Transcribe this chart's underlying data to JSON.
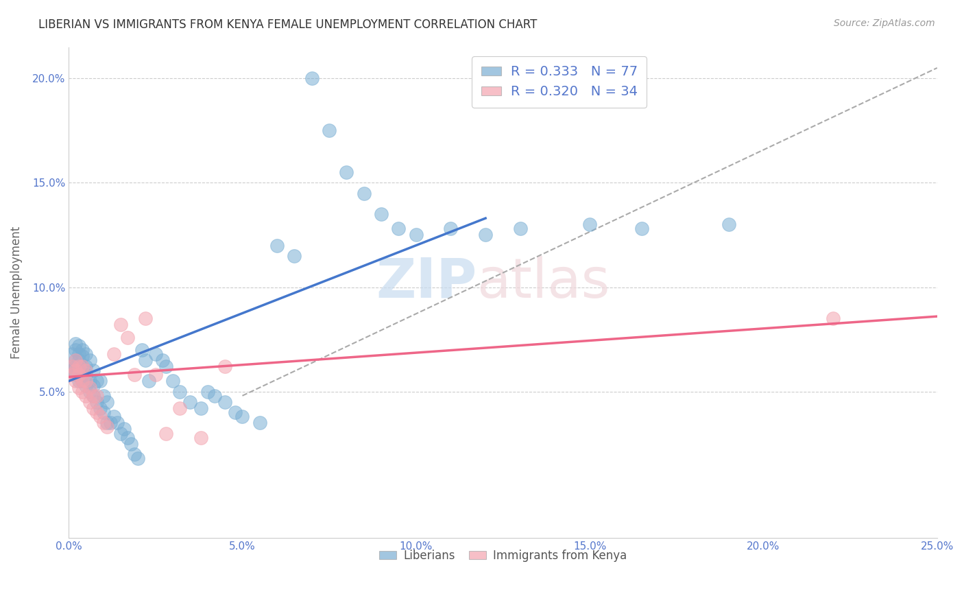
{
  "title": "LIBERIAN VS IMMIGRANTS FROM KENYA FEMALE UNEMPLOYMENT CORRELATION CHART",
  "source": "Source: ZipAtlas.com",
  "ylabel": "Female Unemployment",
  "xlim": [
    0.0,
    0.25
  ],
  "ylim": [
    -0.02,
    0.215
  ],
  "x_ticks": [
    0.0,
    0.05,
    0.1,
    0.15,
    0.2,
    0.25
  ],
  "x_tick_labels": [
    "0.0%",
    "5.0%",
    "10.0%",
    "15.0%",
    "20.0%",
    "25.0%"
  ],
  "y_ticks": [
    0.05,
    0.1,
    0.15,
    0.2
  ],
  "y_tick_labels": [
    "5.0%",
    "10.0%",
    "15.0%",
    "20.0%"
  ],
  "legend_R1": "R = 0.333",
  "legend_N1": "N = 77",
  "legend_R2": "R = 0.320",
  "legend_N2": "N = 34",
  "blue_color": "#7BAFD4",
  "pink_color": "#F4A4B0",
  "blue_line_color": "#4477CC",
  "pink_line_color": "#EE6688",
  "tick_color": "#5577CC",
  "blue_line_x": [
    0.0,
    0.12
  ],
  "blue_line_y": [
    0.055,
    0.133
  ],
  "pink_line_x": [
    0.0,
    0.25
  ],
  "pink_line_y": [
    0.057,
    0.086
  ],
  "gray_line_x": [
    0.05,
    0.25
  ],
  "gray_line_y": [
    0.048,
    0.205
  ],
  "blue_scatter_x": [
    0.001,
    0.001,
    0.001,
    0.002,
    0.002,
    0.002,
    0.002,
    0.002,
    0.003,
    0.003,
    0.003,
    0.003,
    0.003,
    0.003,
    0.004,
    0.004,
    0.004,
    0.004,
    0.004,
    0.005,
    0.005,
    0.005,
    0.005,
    0.006,
    0.006,
    0.006,
    0.007,
    0.007,
    0.007,
    0.008,
    0.008,
    0.009,
    0.009,
    0.01,
    0.01,
    0.011,
    0.011,
    0.012,
    0.013,
    0.014,
    0.015,
    0.016,
    0.017,
    0.018,
    0.019,
    0.02,
    0.021,
    0.022,
    0.023,
    0.025,
    0.027,
    0.028,
    0.03,
    0.032,
    0.035,
    0.038,
    0.04,
    0.042,
    0.045,
    0.048,
    0.05,
    0.055,
    0.06,
    0.065,
    0.07,
    0.075,
    0.08,
    0.085,
    0.09,
    0.095,
    0.1,
    0.11,
    0.12,
    0.13,
    0.15,
    0.165,
    0.19
  ],
  "blue_scatter_y": [
    0.06,
    0.062,
    0.068,
    0.058,
    0.062,
    0.065,
    0.07,
    0.073,
    0.055,
    0.06,
    0.062,
    0.065,
    0.068,
    0.072,
    0.055,
    0.058,
    0.062,
    0.067,
    0.07,
    0.053,
    0.058,
    0.062,
    0.068,
    0.05,
    0.055,
    0.065,
    0.048,
    0.053,
    0.06,
    0.045,
    0.055,
    0.042,
    0.055,
    0.04,
    0.048,
    0.035,
    0.045,
    0.035,
    0.038,
    0.035,
    0.03,
    0.032,
    0.028,
    0.025,
    0.02,
    0.018,
    0.07,
    0.065,
    0.055,
    0.068,
    0.065,
    0.062,
    0.055,
    0.05,
    0.045,
    0.042,
    0.05,
    0.048,
    0.045,
    0.04,
    0.038,
    0.035,
    0.12,
    0.115,
    0.2,
    0.175,
    0.155,
    0.145,
    0.135,
    0.128,
    0.125,
    0.128,
    0.125,
    0.128,
    0.13,
    0.128,
    0.13
  ],
  "pink_scatter_x": [
    0.001,
    0.001,
    0.002,
    0.002,
    0.002,
    0.003,
    0.003,
    0.003,
    0.004,
    0.004,
    0.004,
    0.005,
    0.005,
    0.005,
    0.006,
    0.006,
    0.007,
    0.007,
    0.008,
    0.008,
    0.009,
    0.01,
    0.011,
    0.013,
    0.015,
    0.017,
    0.019,
    0.022,
    0.025,
    0.028,
    0.032,
    0.038,
    0.045,
    0.22
  ],
  "pink_scatter_y": [
    0.058,
    0.062,
    0.055,
    0.06,
    0.065,
    0.052,
    0.058,
    0.062,
    0.05,
    0.055,
    0.062,
    0.048,
    0.055,
    0.06,
    0.045,
    0.052,
    0.042,
    0.048,
    0.04,
    0.048,
    0.038,
    0.035,
    0.033,
    0.068,
    0.082,
    0.076,
    0.058,
    0.085,
    0.058,
    0.03,
    0.042,
    0.028,
    0.062,
    0.085
  ]
}
